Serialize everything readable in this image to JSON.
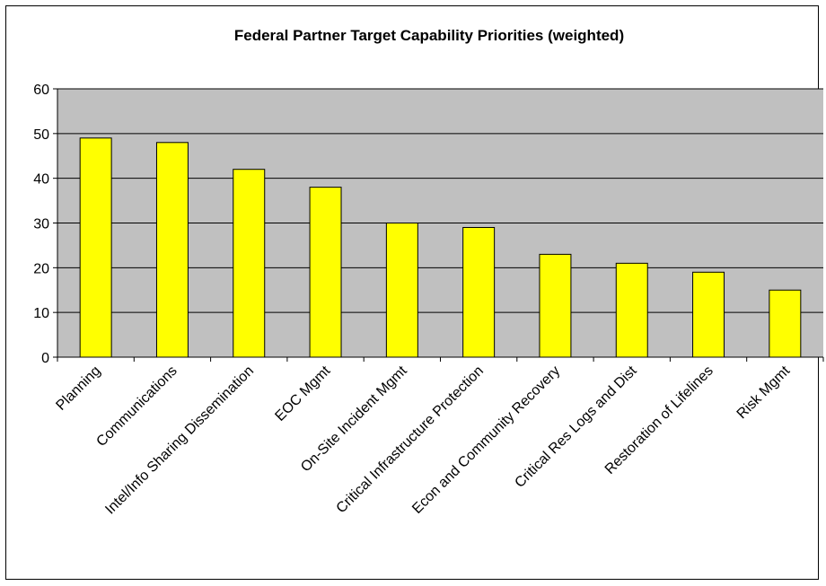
{
  "chart_data": {
    "type": "bar",
    "title": "Federal Partner Target Capability Priorities (weighted)",
    "xlabel": "",
    "ylabel": "",
    "categories": [
      "Planning",
      "Communications",
      "Intel/Info Sharing Dissemination",
      "EOC Mgmt",
      "On-Site Incident Mgmt",
      "Critical Infrastructure Protection",
      "Econ and Community Recovery",
      "Critical Res Logs and Dist",
      "Restoration of Lifelines",
      "Risk Mgmt"
    ],
    "values": [
      49,
      48,
      42,
      38,
      30,
      29,
      23,
      21,
      19,
      15
    ],
    "ylim": [
      0,
      60
    ],
    "yticks": [
      0,
      10,
      20,
      30,
      40,
      50,
      60
    ],
    "grid": true,
    "legend": "none",
    "colors": {
      "bar_fill": "#ffff00",
      "bar_stroke": "#000000",
      "plot_background": "#c0c0c0",
      "gridline": "#000000"
    }
  }
}
